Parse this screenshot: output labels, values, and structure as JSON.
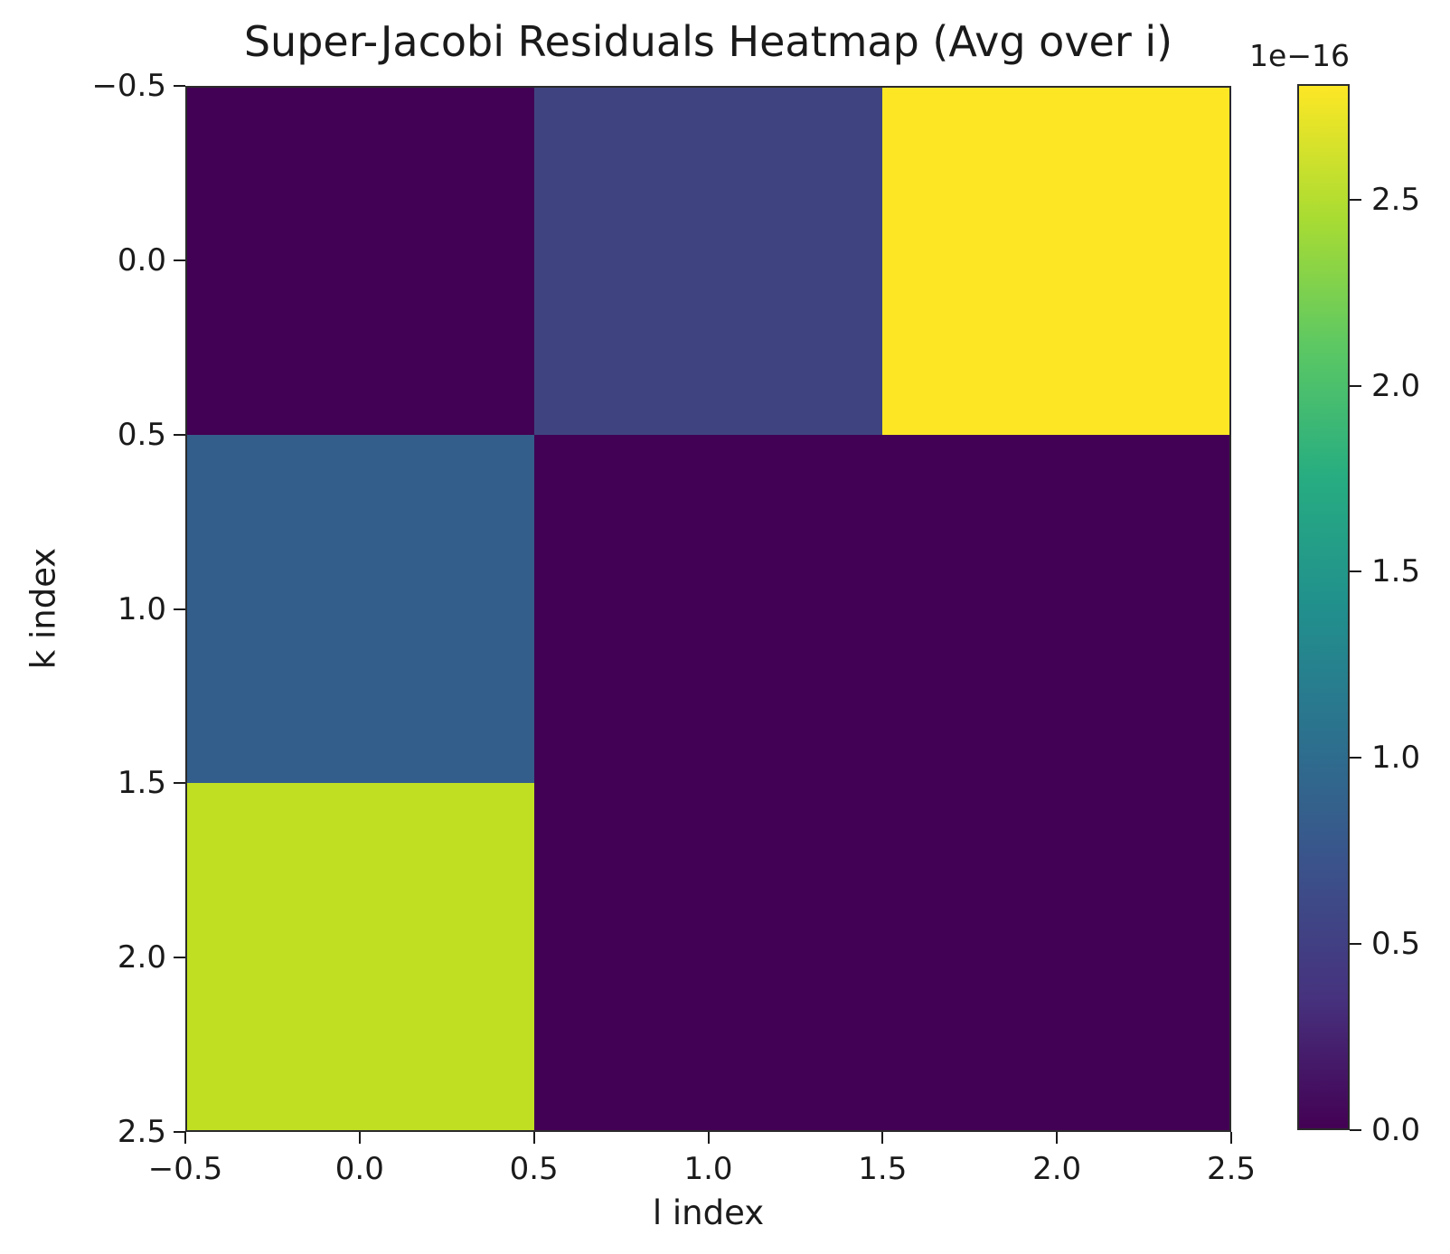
{
  "colors": {
    "background": "#ffffff",
    "text": "#1a1a1a",
    "spine": "#2b2b2b"
  },
  "chart_data": {
    "type": "heatmap",
    "title": "Super-Jacobi Residuals Heatmap (Avg over i)",
    "xlabel": "l index",
    "ylabel": "k index",
    "x": [
      0,
      1,
      2
    ],
    "y": [
      0,
      1,
      2
    ],
    "xlim": [
      -0.5,
      2.5
    ],
    "ylim": [
      2.5,
      -0.5
    ],
    "x_tick_labels": [
      "−0.5",
      "0.0",
      "0.5",
      "1.0",
      "1.5",
      "2.0",
      "2.5"
    ],
    "y_tick_labels": [
      "−0.5",
      "0.0",
      "0.5",
      "1.0",
      "1.5",
      "2.0",
      "2.5"
    ],
    "colormap": "viridis",
    "values_note": "residual magnitudes in units of 1e-16, estimated from colorbar",
    "values_1e16": [
      [
        0.0,
        0.5,
        2.8
      ],
      [
        0.8,
        0.0,
        0.0
      ],
      [
        2.6,
        0.0,
        0.0
      ]
    ],
    "cell_colors": [
      [
        "#420154",
        "#3f4480",
        "#fde725"
      ],
      [
        "#335d8a",
        "#420154",
        "#420154"
      ],
      [
        "#c0de22",
        "#420154",
        "#420154"
      ]
    ],
    "colorbar": {
      "scale_label": "1e−16",
      "tick_labels": [
        "0.0",
        "0.5",
        "1.0",
        "1.5",
        "2.0",
        "2.5"
      ],
      "tick_values": [
        0.0,
        0.5,
        1.0,
        1.5,
        2.0,
        2.5
      ],
      "vmin": 0.0,
      "vmax": 2.81,
      "gradient_stops": [
        "#440154",
        "#46327e",
        "#3b528b",
        "#2c718e",
        "#21908d",
        "#27ad81",
        "#5cc863",
        "#aadc32",
        "#fde725"
      ]
    }
  }
}
